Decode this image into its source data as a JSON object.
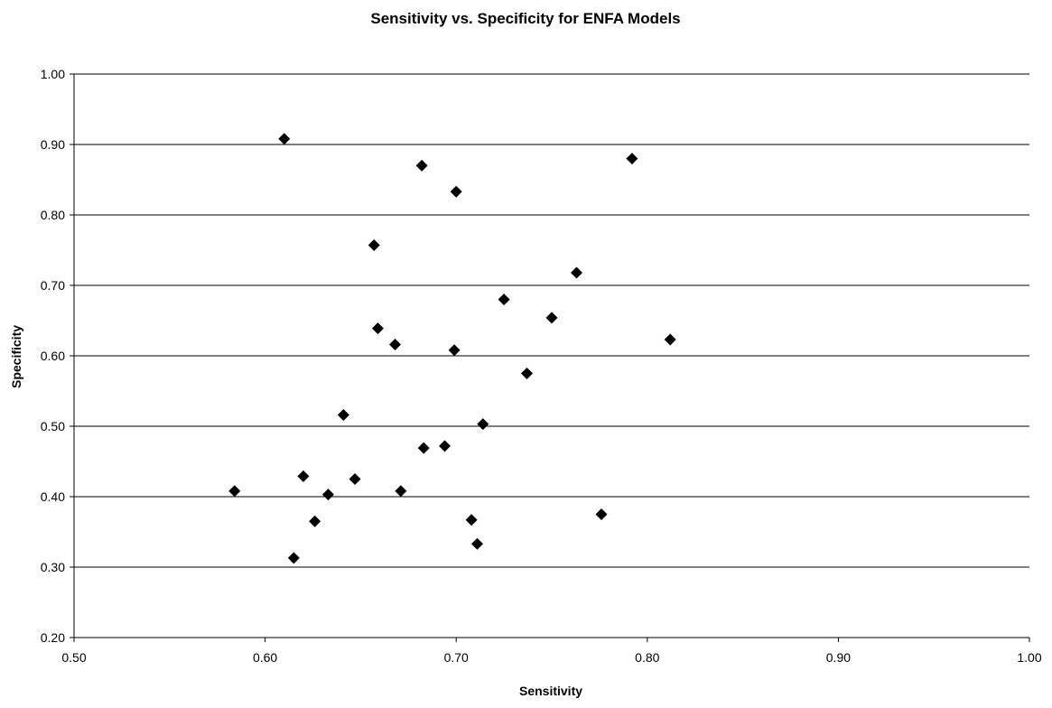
{
  "chart_data": {
    "type": "scatter",
    "title": "Sensitivity vs. Specificity for ENFA Models",
    "xlabel": "Sensitivity",
    "ylabel": "Specificity",
    "xlim": [
      0.5,
      1.0
    ],
    "ylim": [
      0.2,
      1.0
    ],
    "xticks": [
      "0.50",
      "0.60",
      "0.70",
      "0.80",
      "0.90",
      "1.00"
    ],
    "yticks": [
      "0.20",
      "0.30",
      "0.40",
      "0.50",
      "0.60",
      "0.70",
      "0.80",
      "0.90",
      "1.00"
    ],
    "grid": "horizontal major gridlines",
    "legend": "none",
    "marker": "diamond",
    "marker_color": "#000000",
    "points": [
      {
        "x": 0.61,
        "y": 0.908
      },
      {
        "x": 0.682,
        "y": 0.87
      },
      {
        "x": 0.792,
        "y": 0.88
      },
      {
        "x": 0.7,
        "y": 0.833
      },
      {
        "x": 0.657,
        "y": 0.757
      },
      {
        "x": 0.763,
        "y": 0.718
      },
      {
        "x": 0.725,
        "y": 0.68
      },
      {
        "x": 0.75,
        "y": 0.654
      },
      {
        "x": 0.659,
        "y": 0.639
      },
      {
        "x": 0.812,
        "y": 0.623
      },
      {
        "x": 0.668,
        "y": 0.616
      },
      {
        "x": 0.699,
        "y": 0.608
      },
      {
        "x": 0.737,
        "y": 0.575
      },
      {
        "x": 0.641,
        "y": 0.516
      },
      {
        "x": 0.714,
        "y": 0.503
      },
      {
        "x": 0.694,
        "y": 0.472
      },
      {
        "x": 0.683,
        "y": 0.469
      },
      {
        "x": 0.62,
        "y": 0.429
      },
      {
        "x": 0.647,
        "y": 0.425
      },
      {
        "x": 0.584,
        "y": 0.408
      },
      {
        "x": 0.671,
        "y": 0.408
      },
      {
        "x": 0.633,
        "y": 0.403
      },
      {
        "x": 0.776,
        "y": 0.375
      },
      {
        "x": 0.708,
        "y": 0.367
      },
      {
        "x": 0.626,
        "y": 0.365
      },
      {
        "x": 0.711,
        "y": 0.333
      },
      {
        "x": 0.615,
        "y": 0.313
      }
    ]
  }
}
